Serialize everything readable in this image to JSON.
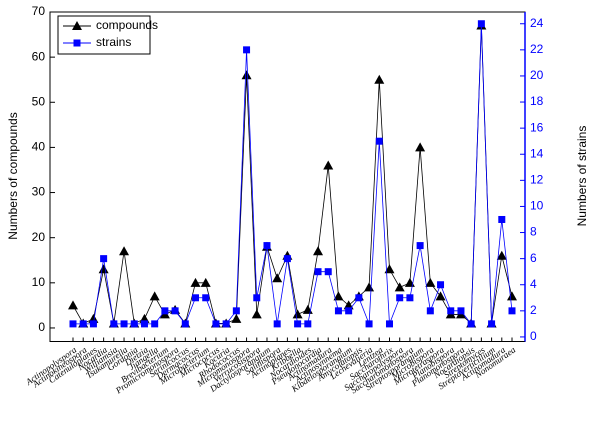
{
  "chart_data": {
    "type": "line",
    "categories": [
      "Actinopolyspora",
      "Actinokineospora",
      "Catenuloplanes",
      "Nocardia",
      "Williamsia",
      "Tsukamurella",
      "Gordonia",
      "Dietzia",
      "Jiangella",
      "Brevibacterium",
      "Promicromonospora",
      "Serinicoccus",
      "Dermacoccus",
      "Microbacterium",
      "Micrococcus",
      "Kocuria",
      "Rhodococcus",
      "Micromonospora",
      "Verrucosispora",
      "Dactylosporangium",
      "Salinispora",
      "Actinoplanes",
      "Kribbella",
      "Nocardioides",
      "Pseudonocardia",
      "Actinomadura",
      "Actinosynnema",
      "Kibdelosporangium",
      "Amycolatopsis",
      "Lechevalieria",
      "Lentzea",
      "Saccharothrix",
      "Saccharopolyspora",
      "Saccharomonospora",
      "Streptosporangium",
      "Microbispora",
      "Microtetraspora",
      "Planobispora",
      "Planomonospora",
      "Nocardiopsis",
      "Streptomyces",
      "Streptoverticillium",
      "Actinomadura",
      "Nonomuraea"
    ],
    "series": [
      {
        "name": "compounds",
        "color": "#000000",
        "marker": "triangle",
        "axis": "y",
        "values": [
          5,
          1,
          2,
          13,
          1,
          17,
          1,
          2,
          7,
          3,
          4,
          1,
          10,
          10,
          1,
          1,
          2,
          56,
          3,
          18,
          11,
          16,
          3,
          4,
          17,
          36,
          7,
          5,
          7,
          9,
          55,
          13,
          9,
          10,
          40,
          10,
          7,
          3,
          3,
          1,
          67,
          1,
          16,
          7
        ]
      },
      {
        "name": "strains",
        "color": "#0000ff",
        "marker": "square",
        "axis": "y2",
        "values": [
          1,
          1,
          1,
          6,
          1,
          1,
          1,
          1,
          1,
          2,
          2,
          1,
          3,
          3,
          1,
          1,
          2,
          22,
          3,
          7,
          1,
          6,
          1,
          1,
          5,
          5,
          2,
          2,
          3,
          1,
          15,
          1,
          3,
          3,
          7,
          2,
          4,
          2,
          2,
          1,
          24,
          1,
          9,
          2
        ]
      }
    ],
    "ylabel": "Numbers of compounds",
    "y2label": "Numbers of strains",
    "ylim": [
      -3,
      70
    ],
    "yticks": [
      0,
      10,
      20,
      30,
      40,
      50,
      60,
      70
    ],
    "y2lim": [
      -0.35,
      24.9
    ],
    "y2ticks": [
      0,
      2,
      4,
      6,
      8,
      10,
      12,
      14,
      16,
      18,
      20,
      22,
      24
    ],
    "legend": "upper left"
  }
}
